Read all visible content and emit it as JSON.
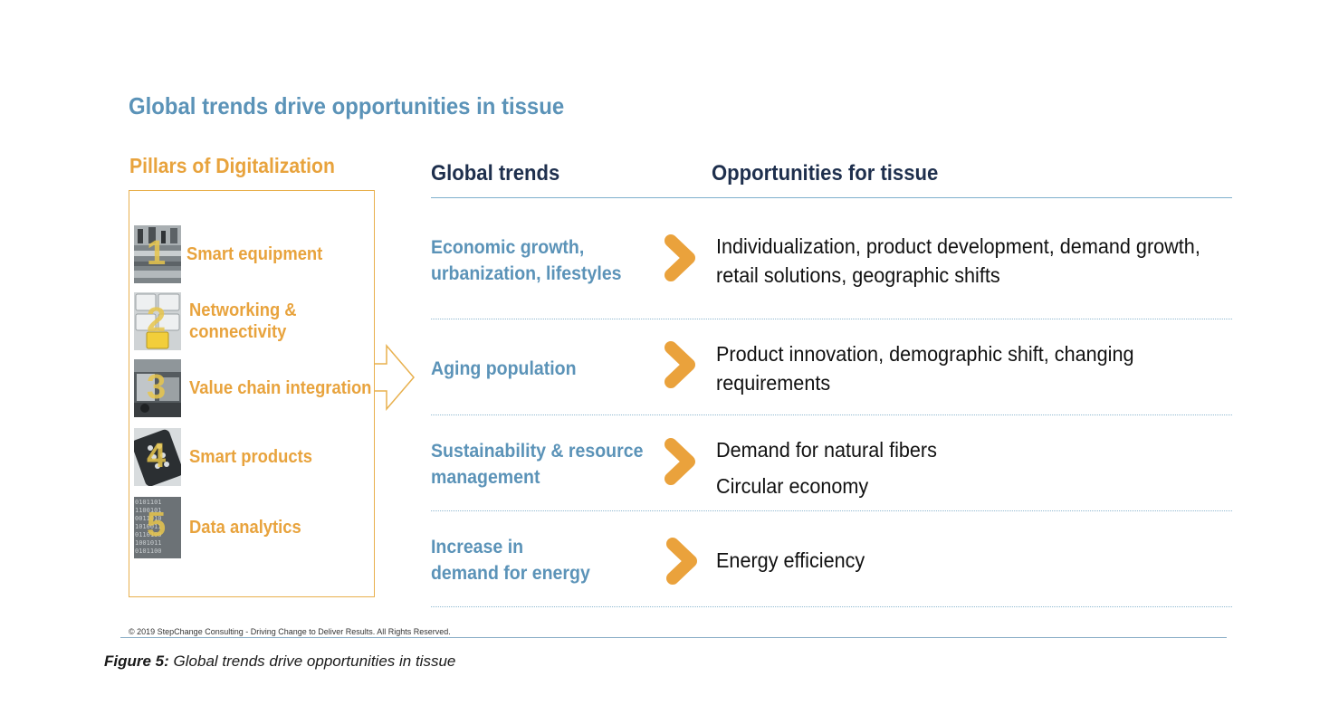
{
  "title": "Global trends drive opportunities in tissue",
  "pillars": {
    "heading": "Pillars of Digitalization",
    "items": [
      {
        "number": "1",
        "label": "Smart equipment",
        "icon": "machinery-photo-icon"
      },
      {
        "number": "2",
        "label": "Networking & connectivity",
        "line1": "Networking &",
        "line2": "connectivity",
        "icon": "keyboard-photo-icon"
      },
      {
        "number": "3",
        "label": "Value chain integration",
        "icon": "warehouse-photo-icon"
      },
      {
        "number": "4",
        "label": "Smart products",
        "icon": "remote-photo-icon"
      },
      {
        "number": "5",
        "label": "Data analytics",
        "icon": "binary-data-photo-icon"
      }
    ]
  },
  "columns": {
    "trends": "Global trends",
    "opportunities": "Opportunities for tissue"
  },
  "rows": [
    {
      "trend_lines": [
        "Economic growth,",
        "urbanization, lifestyles"
      ],
      "opportunity_lines": [
        "Individualization, product development, demand growth,",
        "retail solutions, geographic shifts"
      ]
    },
    {
      "trend_lines": [
        "Aging population"
      ],
      "opportunity_lines": [
        "Product innovation, demographic shift, changing",
        "requirements"
      ]
    },
    {
      "trend_lines": [
        "Sustainability & resource",
        "management"
      ],
      "opportunity_lines": [
        "Demand for natural fibers",
        "Circular economy"
      ]
    },
    {
      "trend_lines": [
        "Increase in",
        "demand for energy"
      ],
      "opportunity_lines": [
        "Energy efficiency"
      ]
    }
  ],
  "copyright": "© 2019 StepChange Consulting - Driving Change to Deliver Results. All Rights Reserved.",
  "caption": {
    "label": "Figure 5:",
    "text": "Global trends drive opportunities in tissue"
  },
  "colors": {
    "title_blue": "#5b93b8",
    "pillar_orange": "#e8a33d",
    "chevron_orange": "#eaa23c",
    "heading_navy": "#1e2f4d"
  }
}
